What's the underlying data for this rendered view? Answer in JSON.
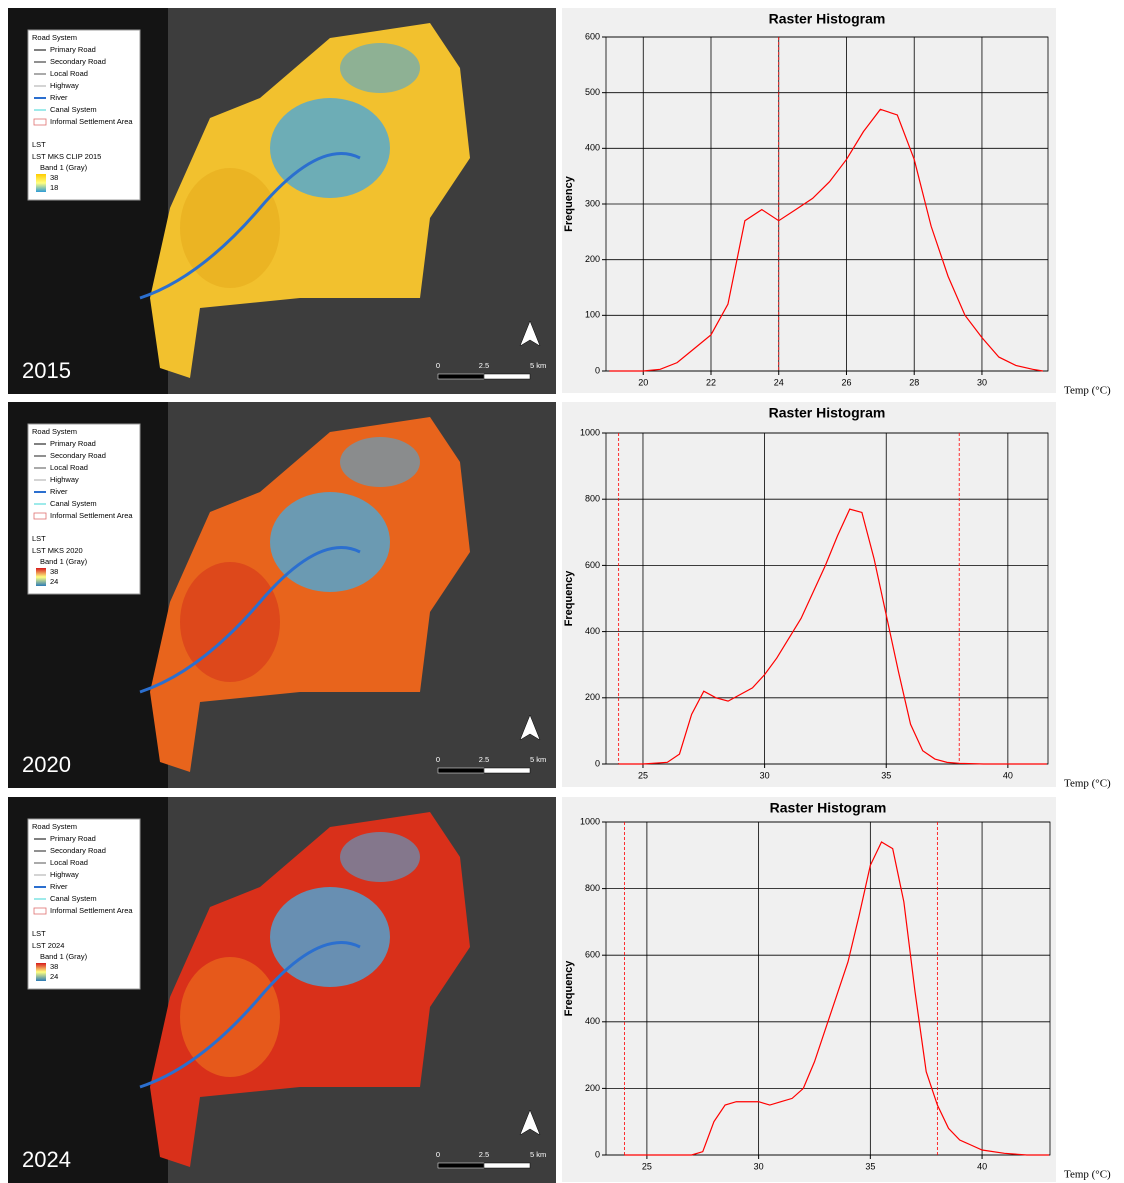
{
  "maps": [
    {
      "year": "2015",
      "legend": {
        "title": "Road System",
        "items": [
          "Primary Road",
          "Secondary Road",
          "Local Road",
          "Highway",
          "River",
          "Canal System",
          "Informal Settlement Area"
        ],
        "group": "LST",
        "layer": "LST MKS CLIP 2015",
        "band": "Band 1 (Gray)",
        "high": 38,
        "low": 18
      },
      "scale": [
        "0",
        "2.5",
        "5 km"
      ]
    },
    {
      "year": "2020",
      "legend": {
        "title": "Road System",
        "items": [
          "Primary Road",
          "Secondary Road",
          "Local Road",
          "Highway",
          "River",
          "Canal System",
          "Informal Settlement Area"
        ],
        "group": "LST",
        "layer": "LST MKS 2020",
        "band": "Band 1 (Gray)",
        "high": 38,
        "low": 24
      },
      "scale": [
        "0",
        "2.5",
        "5 km"
      ]
    },
    {
      "year": "2024",
      "legend": {
        "title": "Road System",
        "items": [
          "Primary Road",
          "Secondary Road",
          "Local Road",
          "Highway",
          "River",
          "Canal System",
          "Informal Settlement Area"
        ],
        "group": "LST",
        "layer": "LST 2024",
        "band": "Band 1 (Gray)",
        "high": 38,
        "low": 24
      },
      "scale": [
        "0",
        "2.5",
        "5 km"
      ]
    }
  ],
  "chart_data": [
    {
      "type": "line",
      "title": "Raster Histogram",
      "x_label": "Temp (°C)",
      "y_label": "Frequency",
      "color": "#ff0000",
      "grid": true,
      "x": [
        19,
        19.5,
        20,
        20.5,
        21,
        21.5,
        22,
        22.5,
        23,
        23.5,
        24,
        24.5,
        25,
        25.5,
        26,
        26.5,
        27,
        27.5,
        28,
        28.5,
        29,
        29.5,
        30,
        30.5,
        31,
        31.5,
        31.8
      ],
      "values": [
        0,
        0,
        0,
        3,
        15,
        40,
        65,
        120,
        270,
        290,
        270,
        290,
        310,
        340,
        380,
        430,
        470,
        460,
        380,
        260,
        170,
        100,
        60,
        25,
        10,
        3,
        0
      ],
      "xlim": [
        18.9,
        31.95
      ],
      "xticks": [
        20,
        22,
        24,
        26,
        28,
        30
      ],
      "ylim": [
        0,
        600
      ],
      "yticks": [
        0,
        100,
        200,
        300,
        400,
        500,
        600
      ],
      "markers": [
        24
      ]
    },
    {
      "type": "line",
      "title": "Raster Histogram",
      "x_label": "Temp (°C)",
      "y_label": "Frequency",
      "color": "#ff0000",
      "grid": true,
      "x": [
        24,
        25,
        26,
        26.5,
        27,
        27.5,
        28,
        28.5,
        29,
        29.5,
        30,
        30.5,
        31,
        31.5,
        32,
        32.5,
        33,
        33.5,
        34,
        34.5,
        35,
        35.5,
        36,
        36.5,
        37,
        37.5,
        38,
        39,
        41.6
      ],
      "values": [
        0,
        0,
        5,
        30,
        150,
        220,
        200,
        190,
        210,
        230,
        270,
        320,
        380,
        440,
        520,
        600,
        690,
        770,
        760,
        620,
        450,
        280,
        120,
        40,
        15,
        5,
        2,
        0,
        0
      ],
      "xlim": [
        23.48,
        41.65
      ],
      "xticks": [
        25,
        30,
        35,
        40
      ],
      "ylim": [
        0,
        1000
      ],
      "yticks": [
        0,
        200,
        400,
        600,
        800,
        1000
      ],
      "markers": [
        24,
        38
      ]
    },
    {
      "type": "line",
      "title": "Raster Histogram",
      "x_label": "Temp (°C)",
      "y_label": "Frequency",
      "color": "#ff0000",
      "grid": true,
      "x": [
        24,
        27,
        27.5,
        28,
        28.5,
        29,
        29.5,
        30,
        30.5,
        31,
        31.5,
        32,
        32.5,
        33,
        33.5,
        34,
        34.5,
        35,
        35.5,
        36,
        36.5,
        37,
        37.5,
        38,
        38.5,
        39,
        39.5,
        40,
        41,
        42,
        43
      ],
      "values": [
        0,
        0,
        10,
        100,
        150,
        160,
        160,
        160,
        150,
        160,
        170,
        200,
        280,
        380,
        480,
        580,
        720,
        870,
        940,
        920,
        760,
        490,
        250,
        150,
        80,
        45,
        30,
        15,
        5,
        0,
        0
      ],
      "xlim": [
        23.17,
        43.04
      ],
      "xticks": [
        25,
        30,
        35,
        40
      ],
      "ylim": [
        0,
        1000
      ],
      "yticks": [
        0,
        200,
        400,
        600,
        800,
        1000
      ],
      "markers": [
        24,
        38
      ]
    }
  ]
}
